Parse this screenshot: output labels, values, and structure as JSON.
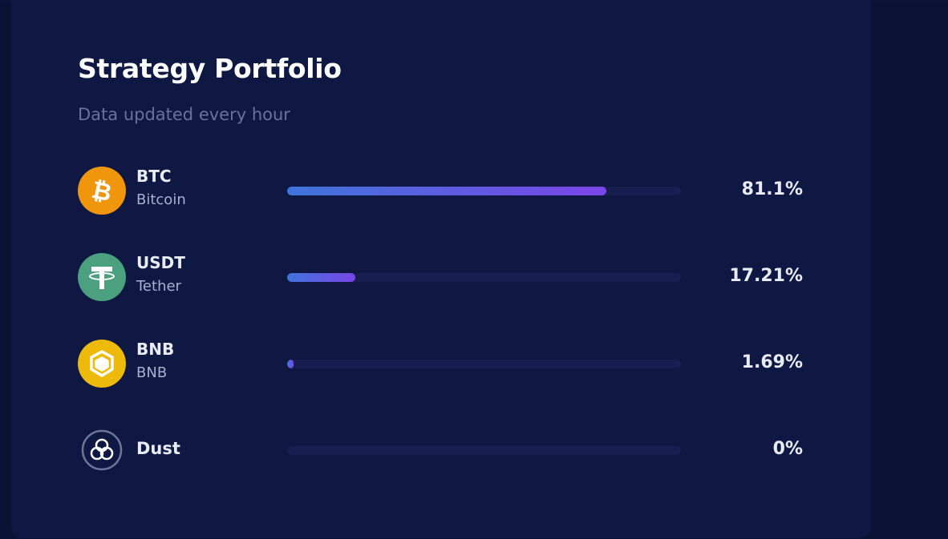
{
  "header": {
    "title": "Strategy Portfolio",
    "subtitle": "Data updated every hour"
  },
  "colors": {
    "bar_start": "#3f74db",
    "bar_end": "#7b45e7",
    "track": "#161f4f",
    "card": "#0f1842"
  },
  "assets": [
    {
      "symbol": "BTC",
      "name": "Bitcoin",
      "percent_label": "81.1%",
      "percent": 81.1,
      "icon": "bitcoin-icon",
      "color": "#f0960c"
    },
    {
      "symbol": "USDT",
      "name": "Tether",
      "percent_label": "17.21%",
      "percent": 17.21,
      "icon": "tether-icon",
      "color": "#4aa07f"
    },
    {
      "symbol": "BNB",
      "name": "BNB",
      "percent_label": "1.69%",
      "percent": 1.69,
      "icon": "bnb-icon",
      "color": "#edb90b"
    },
    {
      "symbol": "Dust",
      "percent_label": "0%",
      "percent": 0,
      "icon": "dust-icon"
    }
  ]
}
